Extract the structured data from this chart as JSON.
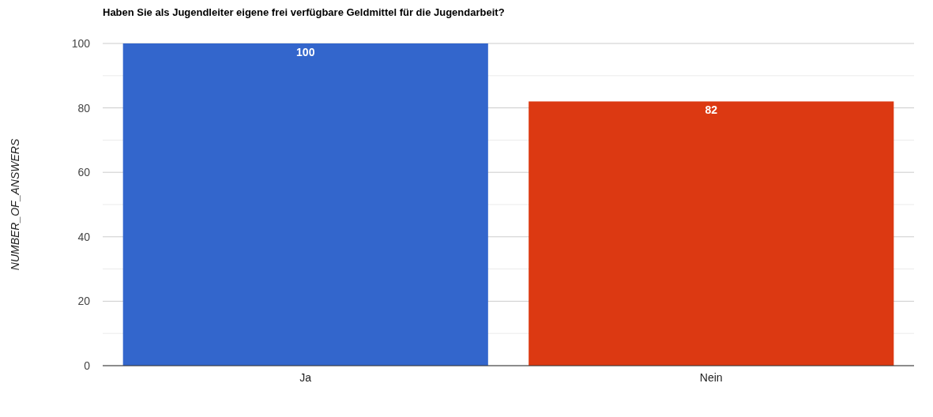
{
  "chart_data": {
    "type": "bar",
    "title": "Haben Sie als Jugendleiter eigene frei verfügbare Geldmittel für die Jugendarbeit?",
    "ylabel": "NUMBER_OF_ANSWERS",
    "categories": [
      "Ja",
      "Nein"
    ],
    "values": [
      100,
      82
    ],
    "colors": [
      "#3366cc",
      "#dc3912"
    ],
    "ylim": [
      0,
      100
    ],
    "yticks": [
      0,
      {
        "value": 10,
        "label": null
      },
      20,
      {
        "value": 30,
        "label": null
      },
      40,
      {
        "value": 50,
        "label": null
      },
      60,
      {
        "value": 70,
        "label": null
      },
      80,
      {
        "value": 90,
        "label": null
      },
      100
    ],
    "grid": true,
    "data_labels": true
  }
}
